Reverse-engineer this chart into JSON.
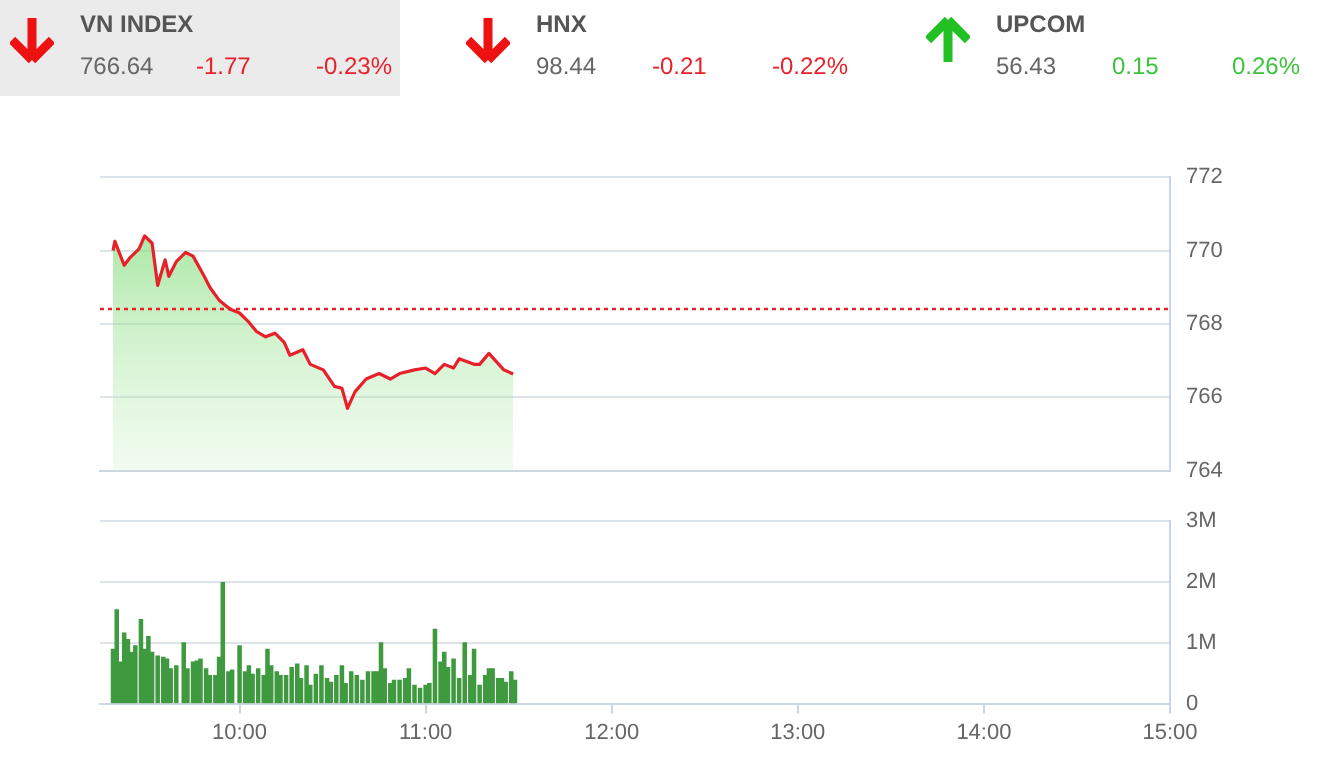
{
  "chart_data": [
    {
      "type": "other",
      "annotations": [
        "VN INDEX",
        "766.64",
        "-1.77",
        "-0.23%",
        "HNX",
        "98.44",
        "-0.21",
        "-0.22%",
        "UPCOM",
        "56.43",
        "0.15",
        "0.26%"
      ]
    },
    {
      "type": "area",
      "xlim": [
        9.25,
        15
      ],
      "ylim": [
        764,
        772
      ],
      "yticks": [
        764,
        766,
        768,
        770,
        772
      ],
      "tick_labels": "y",
      "grid": "y",
      "legend": false,
      "marker": "none",
      "line_style": "solid",
      "ref_lines": [
        {
          "axis": "y",
          "value": 768.41,
          "color": "#e8202a",
          "line_style": "dotted"
        }
      ],
      "series": [
        {
          "color": "#e8202a",
          "x": [
            9.32,
            9.33,
            9.38,
            9.41,
            9.46,
            9.49,
            9.53,
            9.56,
            9.6,
            9.62,
            9.66,
            9.71,
            9.75,
            9.81,
            9.84,
            9.89,
            9.95,
            10.0,
            10.05,
            10.09,
            10.14,
            10.19,
            10.24,
            10.27,
            10.34,
            10.38,
            10.45,
            10.51,
            10.55,
            10.58,
            10.62,
            10.68,
            10.75,
            10.81,
            10.86,
            10.94,
            11.0,
            11.05,
            11.1,
            11.15,
            11.18,
            11.26,
            11.29,
            11.34,
            11.42,
            11.47
          ],
          "values": [
            770.0,
            770.25,
            769.6,
            769.8,
            770.05,
            770.4,
            770.2,
            769.05,
            769.75,
            769.3,
            769.7,
            769.95,
            769.85,
            769.3,
            769.0,
            768.65,
            768.4,
            768.3,
            768.05,
            767.8,
            767.65,
            767.75,
            767.5,
            767.15,
            767.3,
            766.9,
            766.75,
            766.3,
            766.25,
            765.7,
            766.15,
            766.5,
            766.65,
            766.5,
            766.65,
            766.75,
            766.8,
            766.65,
            766.9,
            766.8,
            767.05,
            766.9,
            766.9,
            767.2,
            766.75,
            766.64
          ]
        }
      ]
    },
    {
      "type": "bar",
      "xlim": [
        9.25,
        15
      ],
      "xticks": [
        {
          "value": 10,
          "label": "10:00"
        },
        {
          "value": 11,
          "label": "11:00"
        },
        {
          "value": 12,
          "label": "12:00"
        },
        {
          "value": 13,
          "label": "13:00"
        },
        {
          "value": 14,
          "label": "14:00"
        },
        {
          "value": 15,
          "label": "15:00"
        }
      ],
      "ylim": [
        0,
        3
      ],
      "yticks": [
        0,
        {
          "value": 1,
          "label": "1M"
        },
        {
          "value": 2,
          "label": "2M"
        },
        {
          "value": 3,
          "label": "3M"
        }
      ],
      "grid": "y",
      "legend": false,
      "series": [
        {
          "color": "#3f9a3f",
          "x": [
            9.32,
            9.34,
            9.36,
            9.38,
            9.4,
            9.42,
            9.44,
            9.47,
            9.49,
            9.51,
            9.53,
            9.56,
            9.59,
            9.61,
            9.63,
            9.66,
            9.7,
            9.72,
            9.75,
            9.77,
            9.79,
            9.82,
            9.84,
            9.87,
            9.89,
            9.91,
            9.94,
            9.96,
            10.0,
            10.03,
            10.05,
            10.07,
            10.1,
            10.13,
            10.15,
            10.17,
            10.2,
            10.22,
            10.25,
            10.28,
            10.31,
            10.33,
            10.36,
            10.38,
            10.41,
            10.44,
            10.47,
            10.49,
            10.52,
            10.55,
            10.57,
            10.6,
            10.63,
            10.66,
            10.69,
            10.72,
            10.74,
            10.76,
            10.78,
            10.81,
            10.83,
            10.86,
            10.89,
            10.91,
            10.94,
            10.97,
            11.0,
            11.02,
            11.05,
            11.08,
            11.1,
            11.12,
            11.15,
            11.18,
            11.21,
            11.24,
            11.26,
            11.29,
            11.32,
            11.34,
            11.36,
            11.39,
            11.41,
            11.43,
            11.46,
            11.48
          ],
          "values": [
            0.89,
            1.54,
            0.68,
            1.16,
            1.05,
            0.84,
            0.95,
            1.38,
            0.89,
            1.1,
            0.84,
            0.78,
            0.76,
            0.73,
            0.57,
            0.62,
            1.0,
            0.57,
            0.68,
            0.7,
            0.73,
            0.57,
            0.46,
            0.46,
            0.76,
            1.99,
            0.52,
            0.55,
            0.95,
            0.52,
            0.62,
            0.48,
            0.57,
            0.46,
            0.89,
            0.62,
            0.52,
            0.46,
            0.46,
            0.59,
            0.65,
            0.41,
            0.62,
            0.3,
            0.48,
            0.62,
            0.41,
            0.35,
            0.46,
            0.62,
            0.33,
            0.52,
            0.46,
            0.38,
            0.52,
            0.52,
            0.52,
            1.0,
            0.57,
            0.33,
            0.38,
            0.38,
            0.41,
            0.57,
            0.3,
            0.25,
            0.3,
            0.33,
            1.22,
            0.68,
            0.84,
            0.59,
            0.73,
            0.41,
            1.0,
            0.46,
            0.89,
            0.3,
            0.46,
            0.57,
            0.57,
            0.41,
            0.41,
            0.35,
            0.52,
            0.38
          ]
        }
      ]
    }
  ]
}
